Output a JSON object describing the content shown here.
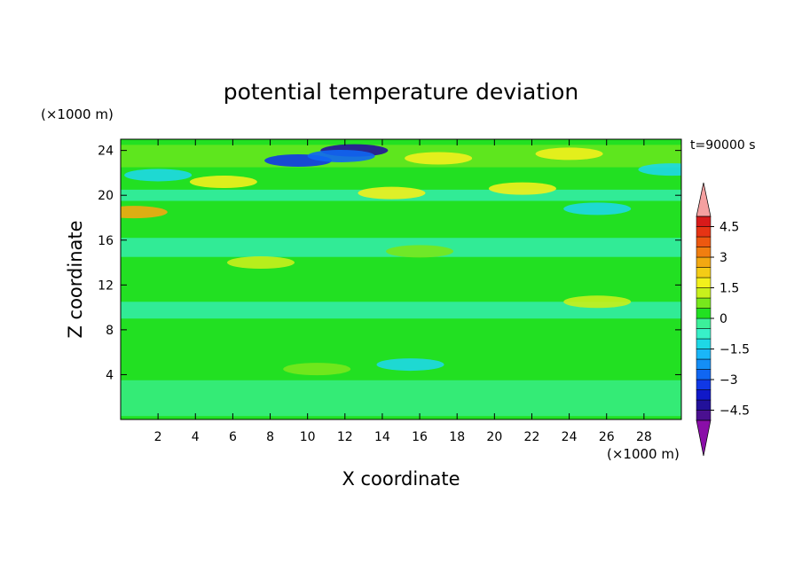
{
  "chart_data": {
    "type": "heatmap",
    "title": "potential temperature deviation",
    "xlabel": "X coordinate",
    "ylabel": "Z coordinate",
    "x_unit": "(×1000 m)",
    "y_unit": "(×1000 m)",
    "time_label": "t=90000 s",
    "xlim": [
      0,
      30
    ],
    "ylim": [
      0,
      25
    ],
    "x_ticks": [
      2,
      4,
      6,
      8,
      10,
      12,
      14,
      16,
      18,
      20,
      22,
      24,
      26,
      28
    ],
    "y_ticks": [
      4,
      8,
      12,
      16,
      20,
      24
    ],
    "colorbar": {
      "levels": [
        -5,
        -4.5,
        -4,
        -3.5,
        -3,
        -2.5,
        -2,
        -1.5,
        -1,
        -0.5,
        0,
        0.5,
        1,
        1.5,
        2,
        2.5,
        3,
        3.5,
        4,
        4.5,
        5
      ],
      "labels": [
        "4.5",
        "3",
        "1.5",
        "0",
        "−1.5",
        "−3",
        "−4.5"
      ],
      "label_values": [
        4.5,
        3,
        1.5,
        0,
        -1.5,
        -3,
        -4.5
      ],
      "colors": [
        "#4a1090",
        "#22119a",
        "#1018c8",
        "#1038e6",
        "#1066f2",
        "#148ef6",
        "#1ab6f8",
        "#1ed8e6",
        "#38f0c8",
        "#3cf09a",
        "#22e022",
        "#78e81c",
        "#c8f01c",
        "#f2f01c",
        "#f4cc16",
        "#f2a812",
        "#f07e10",
        "#ec5810",
        "#e63414",
        "#d81a1a"
      ],
      "under_color": "#8a0ea8",
      "over_color": "#f4a0a0"
    },
    "anomalies": [
      {
        "x": 9.5,
        "z": 23.1,
        "value": -3.5
      },
      {
        "x": 12.5,
        "z": 24.0,
        "value": -4.5
      },
      {
        "x": 11.8,
        "z": 23.5,
        "value": -3.0
      },
      {
        "x": 5.5,
        "z": 21.2,
        "value": 1.5
      },
      {
        "x": 17.0,
        "z": 23.3,
        "value": 1.5
      },
      {
        "x": 24.0,
        "z": 23.7,
        "value": 1.5
      },
      {
        "x": 14.5,
        "z": 20.2,
        "value": 1.5
      },
      {
        "x": 21.5,
        "z": 20.6,
        "value": 1.5
      },
      {
        "x": 0.7,
        "z": 18.5,
        "value": 2.5
      },
      {
        "x": 7.5,
        "z": 14.0,
        "value": 1.0
      },
      {
        "x": 16.0,
        "z": 15.0,
        "value": 0.5
      },
      {
        "x": 25.5,
        "z": 10.5,
        "value": 1.0
      },
      {
        "x": 10.5,
        "z": 4.5,
        "value": 0.5
      },
      {
        "x": 2.0,
        "z": 21.8,
        "value": -1.5
      },
      {
        "x": 29.5,
        "z": 22.3,
        "value": -1.5
      },
      {
        "x": 25.5,
        "z": 18.8,
        "value": -1.5
      },
      {
        "x": 15.5,
        "z": 4.9,
        "value": -1.5
      }
    ]
  }
}
